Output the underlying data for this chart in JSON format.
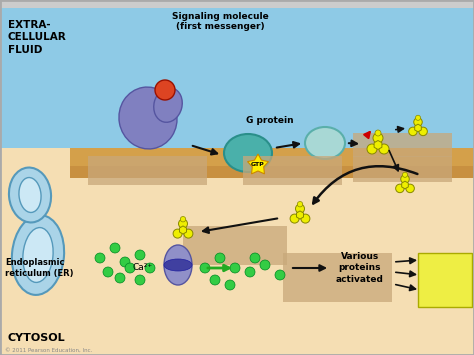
{
  "extracellular_color": "#8ecae6",
  "cytosol_color": "#f5deb3",
  "membrane_color": "#d4a04a",
  "membrane_inner_color": "#c89040",
  "er_blue": "#aad4e8",
  "er_edge": "#5599bb",
  "er_inner": "#cce8f5",
  "purple_mol_color": "#8080c0",
  "purple_mol_edge": "#5555a0",
  "red_ligand": "#dd4422",
  "teal_gprotein": "#4ab0aa",
  "teal_gprotein_edge": "#2a8f8a",
  "light_teal": "#a8d8d5",
  "light_teal_edge": "#5aafaa",
  "gtp_yellow": "#ffee00",
  "gtp_edge": "#cc8800",
  "molecule_yellow": "#eeee00",
  "molecule_edge": "#888800",
  "molecule_center": "#ddcc00",
  "green_dot": "#33cc44",
  "green_dot_edge": "#008822",
  "yellow_box": "#eeee44",
  "yellow_box_edge": "#aaaa00",
  "blur_color": "#c8a87a",
  "blur_alpha": 0.75,
  "arrow_color": "#111111",
  "red_arrow_color": "#cc0000",
  "green_arrow_color": "#22aa22",
  "title_extra": "EXTRA-\nCELLULAR\nFLUID",
  "title_cytosol": "CYTOSOL",
  "label_signaling": "Signaling molecule\n(first messenger)",
  "label_gprotein": "G protein",
  "label_er": "Endoplasmic\nreticulum (ER)",
  "label_ca": "Ca²⁺",
  "label_various": "Various\nproteins\nactivated",
  "label_gtp": "GTP",
  "copyright": "© 2011 Pearson Education, Inc."
}
